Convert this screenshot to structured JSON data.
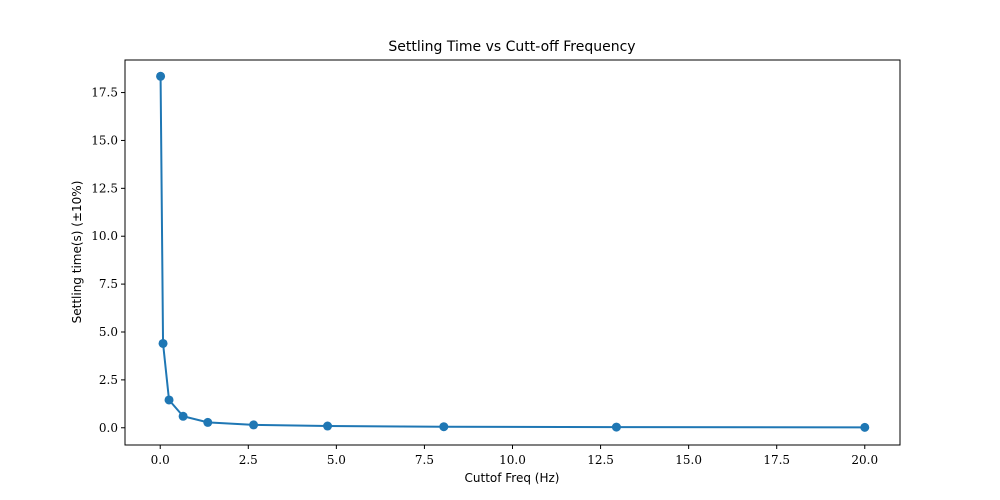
{
  "chart_data": {
    "type": "line",
    "title": "Settling Time vs Cutt-off Frequency",
    "xlabel": "Cuttof Freq (Hz)",
    "ylabel": "Settling time(s) (±10%)",
    "xlim": [
      -1.0,
      21.0
    ],
    "ylim": [
      -0.9,
      19.2
    ],
    "xticks": [
      0.0,
      2.5,
      5.0,
      7.5,
      10.0,
      12.5,
      15.0,
      17.5,
      20.0
    ],
    "xtick_labels": [
      "0.0",
      "2.5",
      "5.0",
      "7.5",
      "10.0",
      "12.5",
      "15.0",
      "17.5",
      "20.0"
    ],
    "yticks": [
      0.0,
      2.5,
      5.0,
      7.5,
      10.0,
      12.5,
      15.0,
      17.5
    ],
    "ytick_labels": [
      "0.0",
      "2.5",
      "5.0",
      "7.5",
      "10.0",
      "12.5",
      "15.0",
      "17.5"
    ],
    "grid": false,
    "series": [
      {
        "color": "#1f77b4",
        "marker": "circle",
        "x": [
          0.01,
          0.08,
          0.25,
          0.65,
          1.35,
          2.65,
          4.75,
          8.05,
          12.95,
          20.0
        ],
        "y": [
          18.35,
          4.4,
          1.45,
          0.6,
          0.28,
          0.15,
          0.09,
          0.055,
          0.035,
          0.02
        ]
      }
    ]
  }
}
